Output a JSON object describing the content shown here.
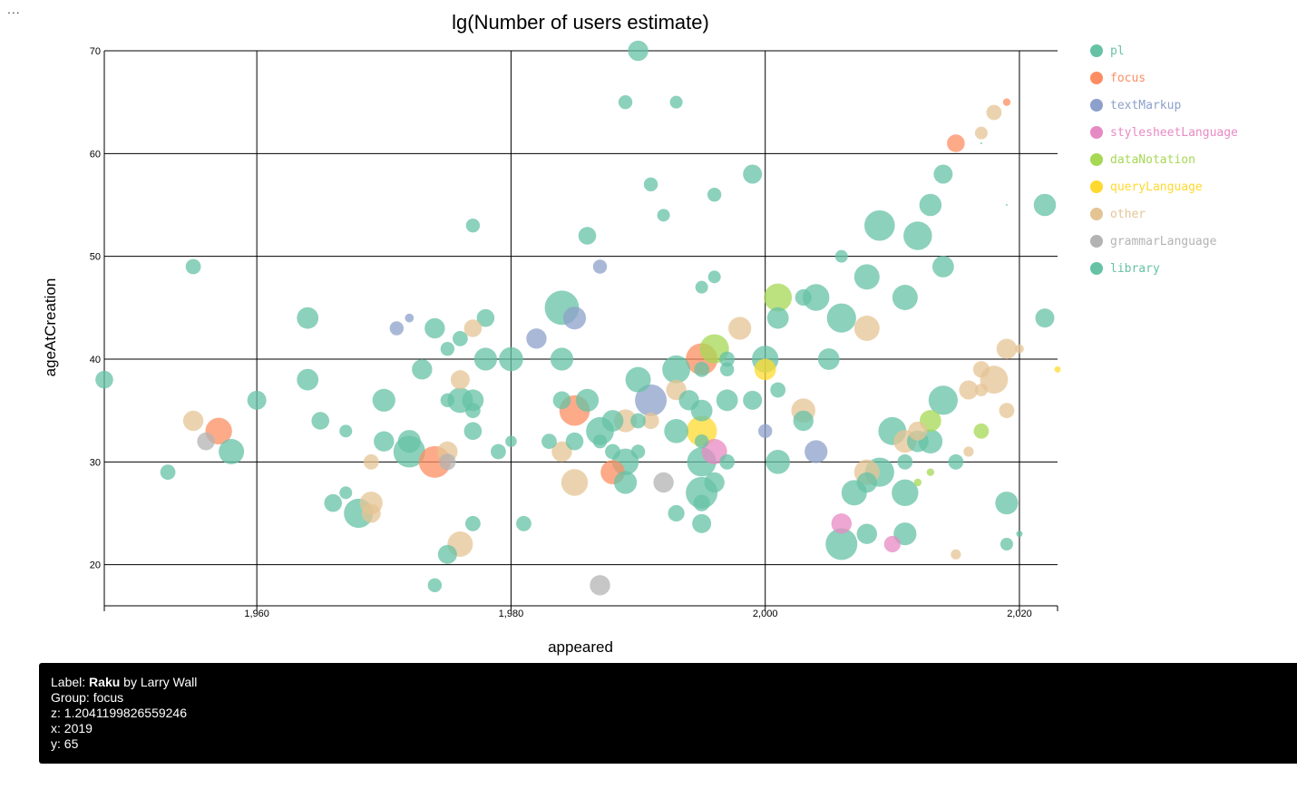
{
  "menu": {
    "dots": "..."
  },
  "chart_data": {
    "type": "scatter",
    "title": "lg(Number of users estimate)",
    "xlabel": "appeared",
    "ylabel": "ageAtCreation",
    "xlim": [
      1948,
      2023
    ],
    "ylim": [
      16,
      70
    ],
    "xticks": [
      1960,
      1980,
      2000,
      2020
    ],
    "xtick_labels": [
      "1,960",
      "1,980",
      "2,000",
      "2,020"
    ],
    "yticks": [
      20,
      30,
      40,
      50,
      60,
      70
    ],
    "ytick_labels": [
      "20",
      "30",
      "40",
      "50",
      "60",
      "70"
    ],
    "grid": true,
    "legend_position": "right",
    "size_encodes": "lg(Number of users estimate)",
    "groups": [
      {
        "name": "pl",
        "color": "#66c2a5"
      },
      {
        "name": "focus",
        "color": "#fc8d62"
      },
      {
        "name": "textMarkup",
        "color": "#8da0cb"
      },
      {
        "name": "stylesheetLanguage",
        "color": "#e78ac3"
      },
      {
        "name": "dataNotation",
        "color": "#a6d854"
      },
      {
        "name": "queryLanguage",
        "color": "#ffd92f"
      },
      {
        "name": "other",
        "color": "#e5c494"
      },
      {
        "name": "grammarLanguage",
        "color": "#b3b3b3"
      },
      {
        "name": "library",
        "color": "#66c2a5"
      }
    ],
    "points": [
      {
        "g": "pl",
        "x": 1990,
        "y": 70,
        "z": 3.2
      },
      {
        "g": "pl",
        "x": 1989,
        "y": 65,
        "z": 2.2
      },
      {
        "g": "pl",
        "x": 1993,
        "y": 65,
        "z": 2.0
      },
      {
        "g": "focus",
        "x": 2019,
        "y": 65,
        "z": 1.2
      },
      {
        "g": "other",
        "x": 2018,
        "y": 64,
        "z": 2.4
      },
      {
        "g": "focus",
        "x": 2015,
        "y": 61,
        "z": 2.8
      },
      {
        "g": "other",
        "x": 2017,
        "y": 62,
        "z": 2.0
      },
      {
        "g": "pl",
        "x": 2017,
        "y": 61,
        "z": 0.3
      },
      {
        "g": "pl",
        "x": 1999,
        "y": 58,
        "z": 3.0
      },
      {
        "g": "pl",
        "x": 2014,
        "y": 58,
        "z": 3.0
      },
      {
        "g": "pl",
        "x": 1991,
        "y": 57,
        "z": 2.2
      },
      {
        "g": "pl",
        "x": 1996,
        "y": 56,
        "z": 2.2
      },
      {
        "g": "pl",
        "x": 2013,
        "y": 55,
        "z": 3.5
      },
      {
        "g": "pl",
        "x": 2022,
        "y": 55,
        "z": 3.5
      },
      {
        "g": "pl",
        "x": 2019,
        "y": 55,
        "z": 0.3
      },
      {
        "g": "pl",
        "x": 1992,
        "y": 54,
        "z": 2.0
      },
      {
        "g": "pl",
        "x": 2009,
        "y": 53,
        "z": 4.8
      },
      {
        "g": "pl",
        "x": 1977,
        "y": 53,
        "z": 2.2
      },
      {
        "g": "pl",
        "x": 1986,
        "y": 52,
        "z": 2.8
      },
      {
        "g": "pl",
        "x": 2012,
        "y": 52,
        "z": 4.5
      },
      {
        "g": "pl",
        "x": 2006,
        "y": 50,
        "z": 2.0
      },
      {
        "g": "pl",
        "x": 1955,
        "y": 49,
        "z": 2.4
      },
      {
        "g": "textMarkup",
        "x": 1987,
        "y": 49,
        "z": 2.2
      },
      {
        "g": "pl",
        "x": 2014,
        "y": 49,
        "z": 3.4
      },
      {
        "g": "pl",
        "x": 2008,
        "y": 48,
        "z": 4.0
      },
      {
        "g": "pl",
        "x": 1996,
        "y": 48,
        "z": 2.0
      },
      {
        "g": "pl",
        "x": 1995,
        "y": 47,
        "z": 2.0
      },
      {
        "g": "dataNotation",
        "x": 2001,
        "y": 46,
        "z": 4.4
      },
      {
        "g": "pl",
        "x": 2003,
        "y": 46,
        "z": 2.6
      },
      {
        "g": "pl",
        "x": 2004,
        "y": 46,
        "z": 4.2
      },
      {
        "g": "pl",
        "x": 2011,
        "y": 46,
        "z": 4.0
      },
      {
        "g": "pl",
        "x": 1984,
        "y": 45,
        "z": 5.4
      },
      {
        "g": "textMarkup",
        "x": 1985,
        "y": 44,
        "z": 3.6
      },
      {
        "g": "pl",
        "x": 1964,
        "y": 44,
        "z": 3.4
      },
      {
        "g": "textMarkup",
        "x": 1972,
        "y": 44,
        "z": 1.4
      },
      {
        "g": "pl",
        "x": 1978,
        "y": 44,
        "z": 2.8
      },
      {
        "g": "pl",
        "x": 2001,
        "y": 44,
        "z": 3.4
      },
      {
        "g": "pl",
        "x": 2006,
        "y": 44,
        "z": 4.6
      },
      {
        "g": "pl",
        "x": 2022,
        "y": 44,
        "z": 3.0
      },
      {
        "g": "textMarkup",
        "x": 1971,
        "y": 43,
        "z": 2.2
      },
      {
        "g": "pl",
        "x": 1974,
        "y": 43,
        "z": 3.2
      },
      {
        "g": "other",
        "x": 1977,
        "y": 43,
        "z": 2.8
      },
      {
        "g": "other",
        "x": 1998,
        "y": 43,
        "z": 3.6
      },
      {
        "g": "other",
        "x": 2008,
        "y": 43,
        "z": 4.0
      },
      {
        "g": "pl",
        "x": 1976,
        "y": 42,
        "z": 2.4
      },
      {
        "g": "textMarkup",
        "x": 1982,
        "y": 42,
        "z": 3.2
      },
      {
        "g": "pl",
        "x": 1975,
        "y": 41,
        "z": 2.2
      },
      {
        "g": "dataNotation",
        "x": 1996,
        "y": 41,
        "z": 4.6
      },
      {
        "g": "other",
        "x": 2019,
        "y": 41,
        "z": 3.2
      },
      {
        "g": "other",
        "x": 2020,
        "y": 41,
        "z": 1.4
      },
      {
        "g": "focus",
        "x": 1995,
        "y": 40,
        "z": 5.0
      },
      {
        "g": "pl",
        "x": 1978,
        "y": 40,
        "z": 3.6
      },
      {
        "g": "pl",
        "x": 1980,
        "y": 40,
        "z": 3.8
      },
      {
        "g": "pl",
        "x": 1984,
        "y": 40,
        "z": 3.6
      },
      {
        "g": "pl",
        "x": 1997,
        "y": 40,
        "z": 2.4
      },
      {
        "g": "pl",
        "x": 2000,
        "y": 40,
        "z": 4.2
      },
      {
        "g": "pl",
        "x": 2005,
        "y": 40,
        "z": 3.4
      },
      {
        "g": "pl",
        "x": 1973,
        "y": 39,
        "z": 3.2
      },
      {
        "g": "pl",
        "x": 1993,
        "y": 39,
        "z": 4.4
      },
      {
        "g": "pl",
        "x": 1995,
        "y": 39,
        "z": 2.4
      },
      {
        "g": "pl",
        "x": 1997,
        "y": 39,
        "z": 2.2
      },
      {
        "g": "queryLanguage",
        "x": 2000,
        "y": 39,
        "z": 3.4
      },
      {
        "g": "other",
        "x": 2017,
        "y": 39,
        "z": 2.6
      },
      {
        "g": "queryLanguage",
        "x": 2023,
        "y": 39,
        "z": 1.0
      },
      {
        "g": "pl",
        "x": 1948,
        "y": 38,
        "z": 2.8
      },
      {
        "g": "pl",
        "x": 1964,
        "y": 38,
        "z": 3.4
      },
      {
        "g": "other",
        "x": 1976,
        "y": 38,
        "z": 3.0
      },
      {
        "g": "pl",
        "x": 1990,
        "y": 38,
        "z": 4.0
      },
      {
        "g": "other",
        "x": 2018,
        "y": 38,
        "z": 4.4
      },
      {
        "g": "other",
        "x": 1993,
        "y": 37,
        "z": 3.2
      },
      {
        "g": "pl",
        "x": 2001,
        "y": 37,
        "z": 2.4
      },
      {
        "g": "other",
        "x": 2016,
        "y": 37,
        "z": 3.0
      },
      {
        "g": "other",
        "x": 2017,
        "y": 37,
        "z": 2.0
      },
      {
        "g": "pl",
        "x": 1960,
        "y": 36,
        "z": 3.0
      },
      {
        "g": "pl",
        "x": 1970,
        "y": 36,
        "z": 3.6
      },
      {
        "g": "pl",
        "x": 1975,
        "y": 36,
        "z": 2.2
      },
      {
        "g": "pl",
        "x": 1976,
        "y": 36,
        "z": 4.0
      },
      {
        "g": "pl",
        "x": 1977,
        "y": 36,
        "z": 3.4
      },
      {
        "g": "pl",
        "x": 1984,
        "y": 36,
        "z": 2.8
      },
      {
        "g": "pl",
        "x": 1986,
        "y": 36,
        "z": 3.6
      },
      {
        "g": "textMarkup",
        "x": 1991,
        "y": 36,
        "z": 5.0
      },
      {
        "g": "pl",
        "x": 1994,
        "y": 36,
        "z": 3.2
      },
      {
        "g": "pl",
        "x": 1997,
        "y": 36,
        "z": 3.4
      },
      {
        "g": "pl",
        "x": 1999,
        "y": 36,
        "z": 3.0
      },
      {
        "g": "pl",
        "x": 2014,
        "y": 36,
        "z": 4.6
      },
      {
        "g": "focus",
        "x": 1985,
        "y": 35,
        "z": 4.8
      },
      {
        "g": "pl",
        "x": 1977,
        "y": 35,
        "z": 2.4
      },
      {
        "g": "pl",
        "x": 1995,
        "y": 35,
        "z": 3.4
      },
      {
        "g": "other",
        "x": 2003,
        "y": 35,
        "z": 3.8
      },
      {
        "g": "other",
        "x": 2019,
        "y": 35,
        "z": 2.4
      },
      {
        "g": "focus",
        "x": 1957,
        "y": 33,
        "z": 4.2
      },
      {
        "g": "other",
        "x": 1955,
        "y": 34,
        "z": 3.2
      },
      {
        "g": "pl",
        "x": 1965,
        "y": 34,
        "z": 2.8
      },
      {
        "g": "pl",
        "x": 1988,
        "y": 34,
        "z": 3.4
      },
      {
        "g": "other",
        "x": 1989,
        "y": 34,
        "z": 3.6
      },
      {
        "g": "pl",
        "x": 1990,
        "y": 34,
        "z": 2.4
      },
      {
        "g": "other",
        "x": 1991,
        "y": 34,
        "z": 2.6
      },
      {
        "g": "pl",
        "x": 2003,
        "y": 34,
        "z": 3.2
      },
      {
        "g": "dataNotation",
        "x": 2013,
        "y": 34,
        "z": 3.4
      },
      {
        "g": "pl",
        "x": 1967,
        "y": 33,
        "z": 2.0
      },
      {
        "g": "pl",
        "x": 1977,
        "y": 33,
        "z": 2.8
      },
      {
        "g": "pl",
        "x": 1987,
        "y": 33,
        "z": 4.4
      },
      {
        "g": "pl",
        "x": 1993,
        "y": 33,
        "z": 3.8
      },
      {
        "g": "queryLanguage",
        "x": 1995,
        "y": 33,
        "z": 4.8
      },
      {
        "g": "textMarkup",
        "x": 2000,
        "y": 33,
        "z": 2.2
      },
      {
        "g": "pl",
        "x": 2010,
        "y": 33,
        "z": 4.4
      },
      {
        "g": "other",
        "x": 2012,
        "y": 33,
        "z": 3.0
      },
      {
        "g": "dataNotation",
        "x": 2017,
        "y": 33,
        "z": 2.4
      },
      {
        "g": "grammarLanguage",
        "x": 1956,
        "y": 32,
        "z": 2.8
      },
      {
        "g": "pl",
        "x": 1970,
        "y": 32,
        "z": 3.2
      },
      {
        "g": "pl",
        "x": 1972,
        "y": 32,
        "z": 3.6
      },
      {
        "g": "pl",
        "x": 1980,
        "y": 32,
        "z": 1.8
      },
      {
        "g": "pl",
        "x": 1983,
        "y": 32,
        "z": 2.4
      },
      {
        "g": "pl",
        "x": 1985,
        "y": 32,
        "z": 2.8
      },
      {
        "g": "pl",
        "x": 1987,
        "y": 32,
        "z": 2.2
      },
      {
        "g": "pl",
        "x": 1995,
        "y": 32,
        "z": 2.2
      },
      {
        "g": "other",
        "x": 2011,
        "y": 32,
        "z": 3.6
      },
      {
        "g": "pl",
        "x": 2012,
        "y": 32,
        "z": 3.4
      },
      {
        "g": "pl",
        "x": 2013,
        "y": 32,
        "z": 3.8
      },
      {
        "g": "pl",
        "x": 1958,
        "y": 31,
        "z": 4.0
      },
      {
        "g": "pl",
        "x": 1972,
        "y": 31,
        "z": 5.0
      },
      {
        "g": "other",
        "x": 1975,
        "y": 31,
        "z": 3.2
      },
      {
        "g": "pl",
        "x": 1979,
        "y": 31,
        "z": 2.4
      },
      {
        "g": "other",
        "x": 1984,
        "y": 31,
        "z": 3.2
      },
      {
        "g": "pl",
        "x": 1988,
        "y": 31,
        "z": 2.4
      },
      {
        "g": "pl",
        "x": 1990,
        "y": 31,
        "z": 2.2
      },
      {
        "g": "stylesheetLanguage",
        "x": 1996,
        "y": 31,
        "z": 4.0
      },
      {
        "g": "textMarkup",
        "x": 2004,
        "y": 31,
        "z": 3.6
      },
      {
        "g": "other",
        "x": 2016,
        "y": 31,
        "z": 1.6
      },
      {
        "g": "focus",
        "x": 1974,
        "y": 30,
        "z": 5.0
      },
      {
        "g": "grammarLanguage",
        "x": 1975,
        "y": 30,
        "z": 2.6
      },
      {
        "g": "other",
        "x": 1969,
        "y": 30,
        "z": 2.4
      },
      {
        "g": "pl",
        "x": 1989,
        "y": 30,
        "z": 4.2
      },
      {
        "g": "pl",
        "x": 1995,
        "y": 30,
        "z": 4.6
      },
      {
        "g": "pl",
        "x": 1997,
        "y": 30,
        "z": 2.4
      },
      {
        "g": "pl",
        "x": 2001,
        "y": 30,
        "z": 3.8
      },
      {
        "g": "pl",
        "x": 2011,
        "y": 30,
        "z": 2.4
      },
      {
        "g": "pl",
        "x": 2015,
        "y": 30,
        "z": 2.4
      },
      {
        "g": "pl",
        "x": 1953,
        "y": 29,
        "z": 2.4
      },
      {
        "g": "focus",
        "x": 1988,
        "y": 29,
        "z": 3.8
      },
      {
        "g": "other",
        "x": 2008,
        "y": 29,
        "z": 4.0
      },
      {
        "g": "pl",
        "x": 2009,
        "y": 29,
        "z": 4.6
      },
      {
        "g": "dataNotation",
        "x": 2013,
        "y": 29,
        "z": 1.2
      },
      {
        "g": "other",
        "x": 1985,
        "y": 28,
        "z": 4.2
      },
      {
        "g": "pl",
        "x": 1989,
        "y": 28,
        "z": 3.6
      },
      {
        "g": "grammarLanguage",
        "x": 1992,
        "y": 28,
        "z": 3.2
      },
      {
        "g": "pl",
        "x": 1996,
        "y": 28,
        "z": 3.2
      },
      {
        "g": "pl",
        "x": 2008,
        "y": 28,
        "z": 3.2
      },
      {
        "g": "dataNotation",
        "x": 2012,
        "y": 28,
        "z": 1.2
      },
      {
        "g": "pl",
        "x": 1967,
        "y": 27,
        "z": 2.0
      },
      {
        "g": "pl",
        "x": 1995,
        "y": 27,
        "z": 5.0
      },
      {
        "g": "pl",
        "x": 2007,
        "y": 27,
        "z": 4.0
      },
      {
        "g": "pl",
        "x": 2011,
        "y": 27,
        "z": 4.2
      },
      {
        "g": "pl",
        "x": 1966,
        "y": 26,
        "z": 2.8
      },
      {
        "g": "other",
        "x": 1969,
        "y": 26,
        "z": 3.6
      },
      {
        "g": "pl",
        "x": 1995,
        "y": 26,
        "z": 2.6
      },
      {
        "g": "pl",
        "x": 2019,
        "y": 26,
        "z": 3.6
      },
      {
        "g": "pl",
        "x": 1968,
        "y": 25,
        "z": 4.6
      },
      {
        "g": "other",
        "x": 1969,
        "y": 25,
        "z": 3.0
      },
      {
        "g": "pl",
        "x": 1993,
        "y": 25,
        "z": 2.6
      },
      {
        "g": "pl",
        "x": 1977,
        "y": 24,
        "z": 2.4
      },
      {
        "g": "pl",
        "x": 1981,
        "y": 24,
        "z": 2.4
      },
      {
        "g": "pl",
        "x": 1995,
        "y": 24,
        "z": 3.0
      },
      {
        "g": "stylesheetLanguage",
        "x": 2006,
        "y": 24,
        "z": 3.2
      },
      {
        "g": "pl",
        "x": 2008,
        "y": 23,
        "z": 3.2
      },
      {
        "g": "pl",
        "x": 2011,
        "y": 23,
        "z": 3.6
      },
      {
        "g": "pl",
        "x": 2020,
        "y": 23,
        "z": 1.0
      },
      {
        "g": "other",
        "x": 1976,
        "y": 22,
        "z": 4.0
      },
      {
        "g": "pl",
        "x": 2006,
        "y": 22,
        "z": 5.0
      },
      {
        "g": "stylesheetLanguage",
        "x": 2010,
        "y": 22,
        "z": 2.6
      },
      {
        "g": "pl",
        "x": 2019,
        "y": 22,
        "z": 2.0
      },
      {
        "g": "pl",
        "x": 1975,
        "y": 21,
        "z": 3.0
      },
      {
        "g": "other",
        "x": 2015,
        "y": 21,
        "z": 1.6
      },
      {
        "g": "pl",
        "x": 1974,
        "y": 18,
        "z": 2.2
      },
      {
        "g": "grammarLanguage",
        "x": 1987,
        "y": 18,
        "z": 3.2
      }
    ]
  },
  "tooltip": {
    "label_prefix": "Label: ",
    "label_name": "Raku",
    "label_suffix": " by Larry Wall",
    "group_line": "Group: focus",
    "z_line": "z: 1.2041199826559246",
    "x_line": "x: 2019",
    "y_line": "y: 65"
  }
}
